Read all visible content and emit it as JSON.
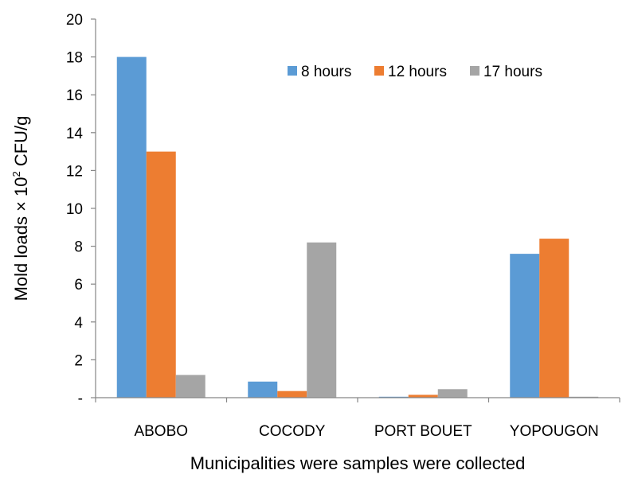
{
  "chart_data": {
    "type": "bar",
    "categories": [
      "ABOBO",
      "COCODY",
      "PORT BOUET",
      "YOPOUGON"
    ],
    "series": [
      {
        "name": "8 hours",
        "values": [
          18,
          0.85,
          0.05,
          7.6
        ],
        "color": "#5B9BD5"
      },
      {
        "name": "12 hours",
        "values": [
          13,
          0.35,
          0.15,
          8.4
        ],
        "color": "#ED7D31"
      },
      {
        "name": "17 hours",
        "values": [
          1.2,
          8.2,
          0.45,
          0.05
        ],
        "color": "#A5A5A5"
      }
    ],
    "ylim": [
      0,
      20
    ],
    "yticks": [
      0,
      2,
      4,
      6,
      8,
      10,
      12,
      14,
      16,
      18,
      20
    ],
    "ytick_labels": [
      "-",
      "2",
      "4",
      "6",
      "8",
      "10",
      "12",
      "14",
      "16",
      "18",
      "20"
    ],
    "xlabel": "Municipalities were samples were collected",
    "ylabel_main": "Mold loads × 10",
    "ylabel_sup": "2",
    "ylabel_end": " CFU/g",
    "legend_position": "top-right",
    "grid": false
  }
}
